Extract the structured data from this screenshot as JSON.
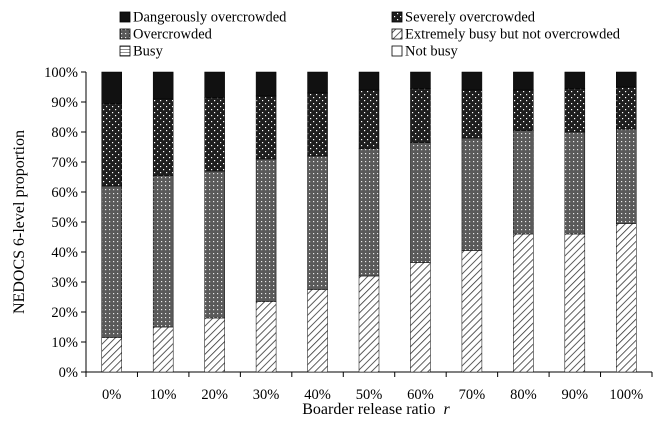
{
  "chart_data": {
    "type": "bar",
    "stacked": true,
    "xlabel": "Boarder release ratio",
    "xlabel_var": "r",
    "ylabel": "NEDOCS 6-level proportion",
    "ylim": [
      0,
      100
    ],
    "y_ticks": [
      "0%",
      "10%",
      "20%",
      "30%",
      "40%",
      "50%",
      "60%",
      "70%",
      "80%",
      "90%",
      "100%"
    ],
    "grid": false,
    "legend_position": "top",
    "categories": [
      "0%",
      "10%",
      "20%",
      "30%",
      "40%",
      "50%",
      "60%",
      "70%",
      "80%",
      "90%",
      "100%"
    ],
    "series": [
      {
        "name": "Not busy",
        "pattern": "white",
        "values": [
          0,
          0,
          0,
          0,
          0,
          0,
          0,
          0,
          0,
          0,
          0
        ]
      },
      {
        "name": "Busy",
        "pattern": "grid",
        "values": [
          0,
          0,
          0,
          0,
          0,
          0,
          0,
          0,
          0,
          0,
          0
        ]
      },
      {
        "name": "Extremely busy but not overcrowded",
        "pattern": "diag",
        "values": [
          11.5,
          15,
          18,
          23.5,
          27.5,
          32,
          36.5,
          40.5,
          46,
          46,
          49.5
        ]
      },
      {
        "name": "Overcrowded",
        "pattern": "dots-dense",
        "values": [
          50.5,
          50.5,
          49,
          47.5,
          44.5,
          42.5,
          40,
          37.5,
          34.5,
          34,
          31.5
        ]
      },
      {
        "name": "Severely overcrowded",
        "pattern": "dots-sparse",
        "values": [
          27.5,
          25.5,
          24.5,
          21,
          21,
          19.5,
          18,
          16,
          13.5,
          14.5,
          14
        ]
      },
      {
        "name": "Dangerously overcrowded",
        "pattern": "black",
        "values": [
          10.5,
          9,
          8.5,
          8,
          7,
          6,
          5.5,
          6,
          6,
          5.5,
          5
        ]
      }
    ],
    "legend_entries": [
      "Dangerously overcrowded",
      "Severely overcrowded",
      "Overcrowded",
      "Extremely busy but not overcrowded",
      "Busy",
      "Not busy"
    ]
  }
}
